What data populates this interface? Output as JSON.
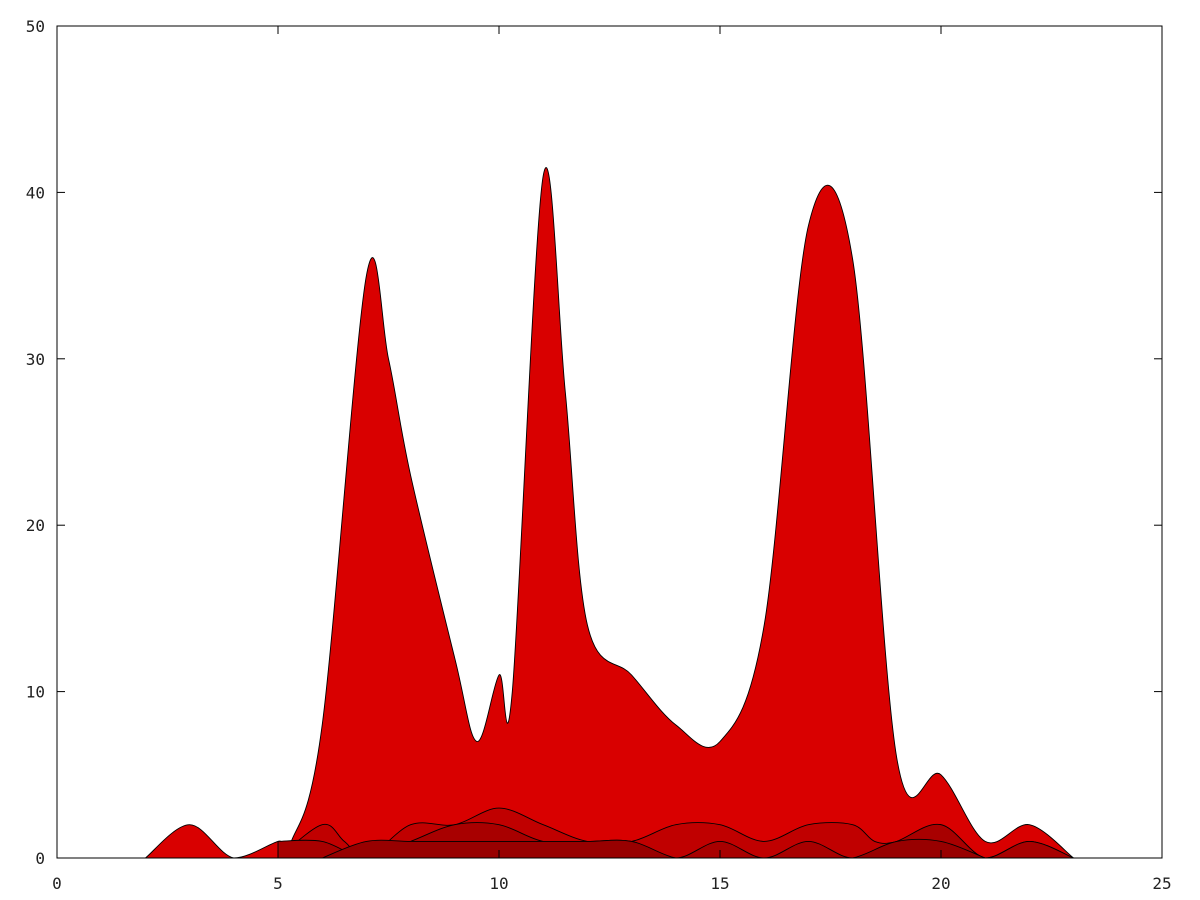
{
  "chart_data": {
    "type": "area",
    "title": "",
    "xlabel": "",
    "ylabel": "",
    "xlim": [
      0,
      25
    ],
    "ylim": [
      0,
      50
    ],
    "xticks": [
      0,
      5,
      10,
      15,
      20,
      25
    ],
    "yticks": [
      0,
      10,
      20,
      30,
      40,
      50
    ],
    "grid": false,
    "legend": "none",
    "series": [
      {
        "color": "#d90000",
        "points": [
          [
            2,
            0
          ],
          [
            3,
            2
          ],
          [
            4,
            0
          ],
          [
            5,
            1
          ],
          [
            5.3,
            1
          ],
          [
            6,
            8
          ],
          [
            7,
            35
          ],
          [
            7.5,
            30
          ],
          [
            8,
            23
          ],
          [
            9,
            12
          ],
          [
            9.5,
            7
          ],
          [
            10,
            11
          ],
          [
            10.3,
            10
          ],
          [
            11,
            41
          ],
          [
            11.5,
            28
          ],
          [
            12,
            14
          ],
          [
            13,
            11
          ],
          [
            14,
            8
          ],
          [
            15,
            7
          ],
          [
            16,
            14
          ],
          [
            17,
            38
          ],
          [
            18,
            36
          ],
          [
            19,
            6
          ],
          [
            20,
            5
          ],
          [
            21,
            1
          ],
          [
            22,
            2
          ],
          [
            23,
            0
          ]
        ]
      },
      {
        "color": "#c00000",
        "points": [
          [
            5,
            0
          ],
          [
            6,
            2
          ],
          [
            6.5,
            1
          ],
          [
            7,
            0
          ],
          [
            8,
            2
          ],
          [
            9,
            2
          ],
          [
            10,
            3
          ],
          [
            11,
            2
          ],
          [
            12,
            1
          ],
          [
            13,
            1
          ],
          [
            14,
            2
          ],
          [
            15,
            2
          ],
          [
            16,
            1
          ],
          [
            17,
            2
          ],
          [
            18,
            2
          ],
          [
            18.5,
            1
          ],
          [
            19,
            1
          ],
          [
            20,
            2
          ],
          [
            21,
            0
          ],
          [
            22,
            1
          ],
          [
            23,
            0
          ]
        ]
      },
      {
        "color": "#a80000",
        "points": [
          [
            5,
            1
          ],
          [
            6,
            1
          ],
          [
            7,
            0
          ],
          [
            8,
            1
          ],
          [
            9,
            2
          ],
          [
            10,
            2
          ],
          [
            11,
            1
          ],
          [
            12,
            1
          ],
          [
            13,
            1
          ],
          [
            14,
            0
          ],
          [
            15,
            1
          ],
          [
            16,
            0
          ],
          [
            17,
            1
          ],
          [
            18,
            0
          ],
          [
            19,
            1
          ],
          [
            20,
            2
          ],
          [
            21,
            0
          ],
          [
            22,
            1
          ],
          [
            23,
            0
          ]
        ]
      },
      {
        "color": "#980000",
        "points": [
          [
            6,
            0
          ],
          [
            7,
            1
          ],
          [
            8,
            1
          ],
          [
            9,
            1
          ],
          [
            10,
            1
          ],
          [
            11,
            1
          ],
          [
            12,
            1
          ],
          [
            13,
            1
          ],
          [
            14,
            0
          ],
          [
            15,
            0
          ],
          [
            16,
            0
          ],
          [
            17,
            0
          ],
          [
            18,
            0
          ],
          [
            19,
            1
          ],
          [
            20,
            1
          ],
          [
            21,
            0
          ]
        ]
      }
    ]
  }
}
